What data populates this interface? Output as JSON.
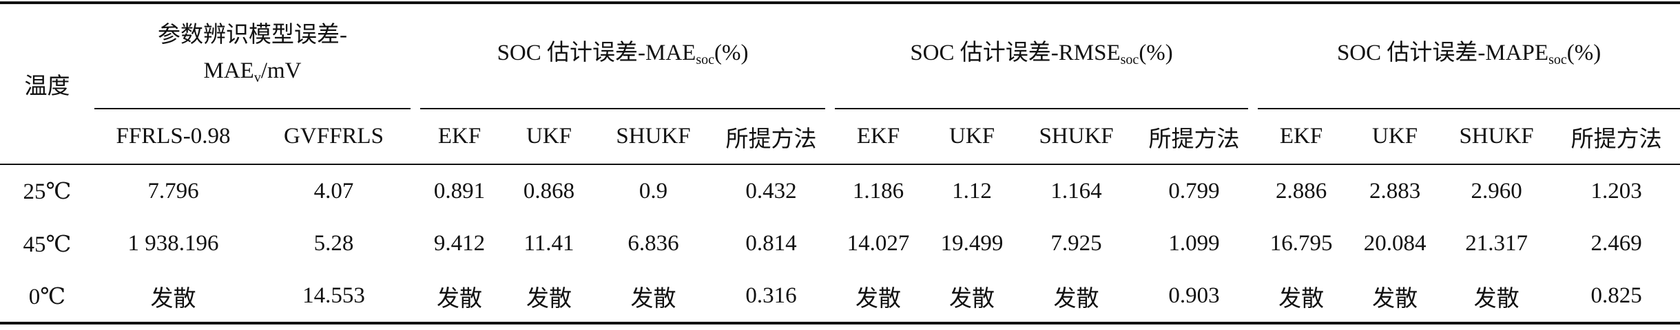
{
  "table": {
    "header": {
      "temperature": "温度",
      "groups": [
        {
          "line1": "参数辨识模型误差-",
          "main": "MAE",
          "subscript": "v",
          "suffix": "/mV"
        },
        {
          "line1": "SOC 估计误差-",
          "main": "MAE",
          "subscript": "soc",
          "suffix": "(%)"
        },
        {
          "line1": "SOC 估计误差-",
          "main": "RMSE",
          "subscript": "soc",
          "suffix": "(%)"
        },
        {
          "line1": "SOC 估计误差-",
          "main": "MAPE",
          "subscript": "soc",
          "suffix": "(%)"
        }
      ],
      "columns": [
        "FFRLS-0.98",
        "GVFFRLS",
        "EKF",
        "UKF",
        "SHUKF",
        "所提方法",
        "EKF",
        "UKF",
        "SHUKF",
        "所提方法",
        "EKF",
        "UKF",
        "SHUKF",
        "所提方法"
      ]
    },
    "rows": [
      [
        "25℃",
        "7.796",
        "4.07",
        "0.891",
        "0.868",
        "0.9",
        "0.432",
        "1.186",
        "1.12",
        "1.164",
        "0.799",
        "2.886",
        "2.883",
        "2.960",
        "1.203"
      ],
      [
        "45℃",
        "1 938.196",
        "5.28",
        "9.412",
        "11.41",
        "6.836",
        "0.814",
        "14.027",
        "19.499",
        "7.925",
        "1.099",
        "16.795",
        "20.084",
        "21.317",
        "2.469"
      ],
      [
        "0℃",
        "发散",
        "14.553",
        "发散",
        "发散",
        "发散",
        "0.316",
        "发散",
        "发散",
        "发散",
        "0.903",
        "发散",
        "发散",
        "发散",
        "0.825"
      ]
    ]
  }
}
